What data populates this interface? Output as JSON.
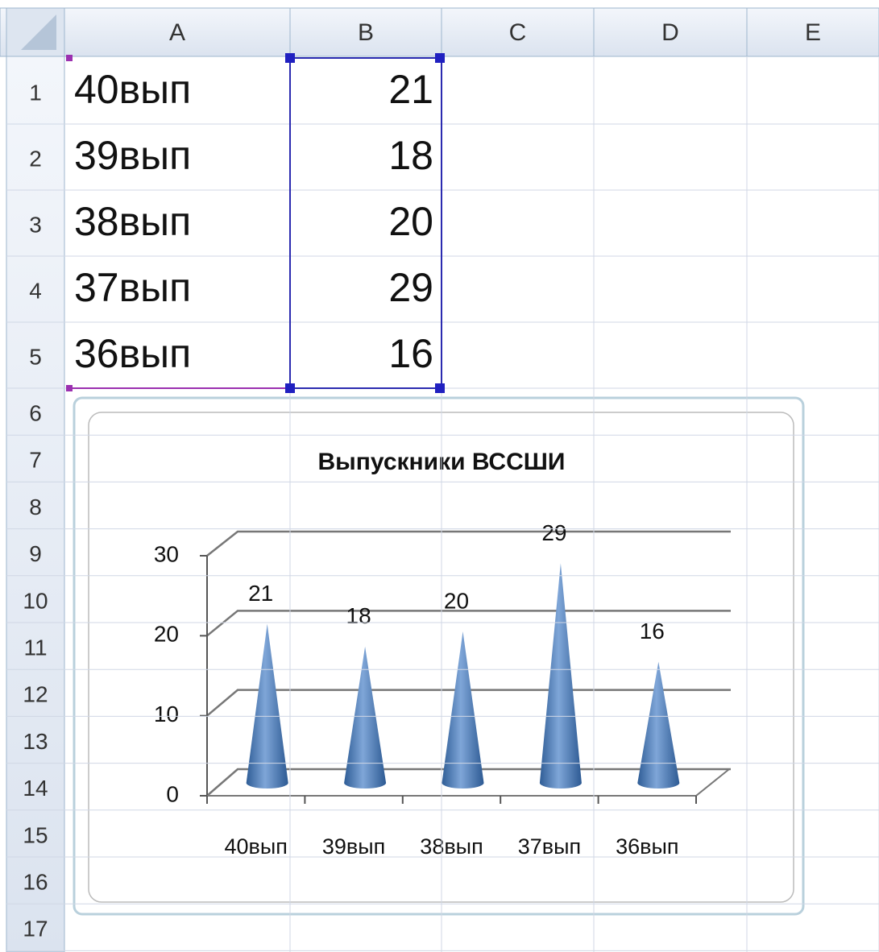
{
  "sheet": {
    "columns": [
      "A",
      "B",
      "C",
      "D",
      "E"
    ],
    "rows": [
      1,
      2,
      3,
      4,
      5,
      6,
      7,
      8,
      9,
      10,
      11,
      12,
      13,
      14,
      15,
      16,
      17
    ],
    "cells": [
      [
        "40вып",
        21
      ],
      [
        "39вып",
        18
      ],
      [
        "38вып",
        20
      ],
      [
        "37вып",
        29
      ],
      [
        "36вып",
        16
      ]
    ]
  },
  "chart_data": {
    "type": "cone",
    "title": "Выпускники ВССШИ",
    "categories": [
      "40вып",
      "39вып",
      "38вып",
      "37вып",
      "36вып"
    ],
    "values": [
      21,
      18,
      20,
      29,
      16
    ],
    "color": "#4f81bd",
    "ylim": [
      0,
      30
    ],
    "yticks": [
      0,
      10,
      20,
      30
    ],
    "grid": true
  }
}
